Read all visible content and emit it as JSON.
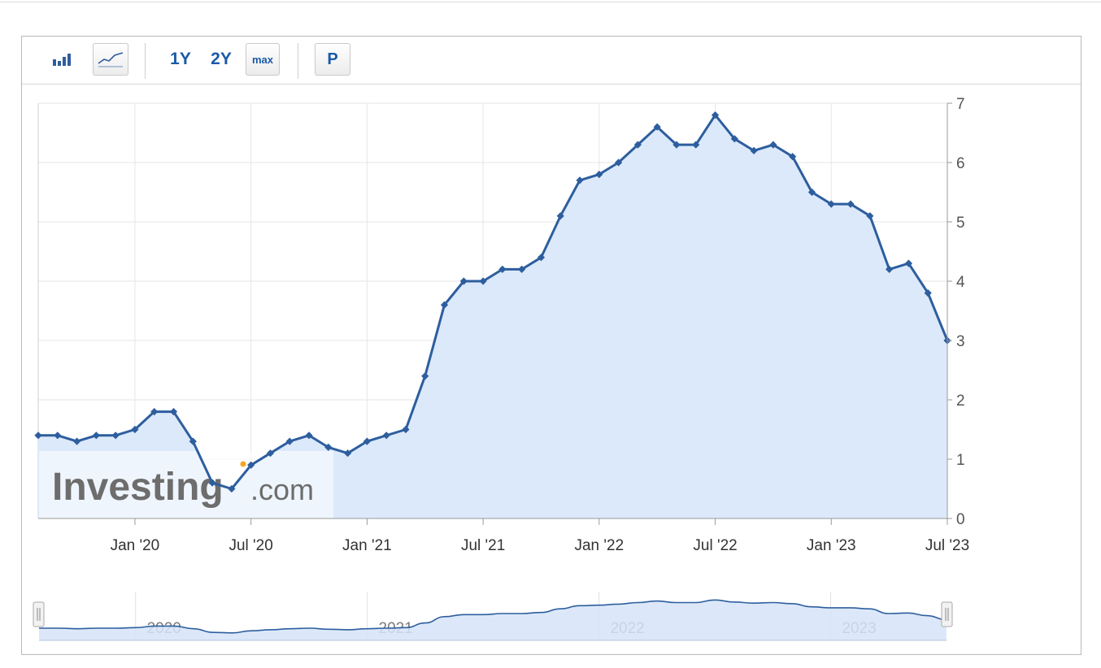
{
  "toolbar": {
    "bar_chart_icon": "bar-chart-icon",
    "line_chart_icon": "line-chart-icon",
    "range_1y": "1Y",
    "range_2y": "2Y",
    "range_max": "max",
    "print_label": "P"
  },
  "watermark": {
    "brand": "Investing",
    "suffix": ".com"
  },
  "colors": {
    "line": "#2d5e9e",
    "area": "#dce9fb",
    "accent": "#1a5aa8",
    "watermark_dot": "#f5a623"
  },
  "chart_data": {
    "type": "area",
    "title": "",
    "xlabel": "",
    "ylabel": "",
    "ylim": [
      0,
      7
    ],
    "yticks": [
      "0",
      "1",
      "2",
      "3",
      "4",
      "5",
      "6",
      "7"
    ],
    "grid": true,
    "axis_position": "right",
    "x_ticks": [
      "Jan '20",
      "Jul '20",
      "Jan '21",
      "Jul '21",
      "Jan '22",
      "Jul '22",
      "Jan '23",
      "Jul '23"
    ],
    "navigator_labels": [
      "2020",
      "2021",
      "2022",
      "2023"
    ],
    "series": [
      {
        "x": [
          "2019-08",
          "2019-09",
          "2019-10",
          "2019-11",
          "2019-12",
          "2020-01",
          "2020-02",
          "2020-03",
          "2020-04",
          "2020-05",
          "2020-06",
          "2020-07",
          "2020-08",
          "2020-09",
          "2020-10",
          "2020-11",
          "2020-12",
          "2021-01",
          "2021-02",
          "2021-03",
          "2021-04",
          "2021-05",
          "2021-06",
          "2021-07",
          "2021-08",
          "2021-09",
          "2021-10",
          "2021-11",
          "2021-12",
          "2022-01",
          "2022-02",
          "2022-03",
          "2022-04",
          "2022-05",
          "2022-06",
          "2022-07",
          "2022-08",
          "2022-09",
          "2022-10",
          "2022-11",
          "2022-12",
          "2023-01",
          "2023-02",
          "2023-03",
          "2023-04",
          "2023-05",
          "2023-06",
          "2023-07"
        ],
        "values": [
          1.4,
          1.4,
          1.3,
          1.4,
          1.4,
          1.5,
          1.8,
          1.8,
          1.3,
          0.6,
          0.5,
          0.9,
          1.1,
          1.3,
          1.4,
          1.2,
          1.1,
          1.3,
          1.4,
          1.5,
          2.4,
          3.6,
          4.0,
          4.0,
          4.2,
          4.2,
          4.4,
          5.1,
          5.7,
          5.8,
          6.0,
          6.3,
          6.6,
          6.3,
          6.3,
          6.8,
          6.4,
          6.2,
          6.3,
          6.1,
          5.5,
          5.3,
          5.3,
          5.1,
          4.2,
          4.3,
          3.8,
          3.0
        ]
      }
    ]
  }
}
